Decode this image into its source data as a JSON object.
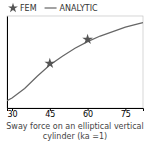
{
  "chart_data": {
    "type": "line",
    "caption": "Sway force on an elliptical vertical cylinder (ka =1)",
    "xlim": [
      28,
      82
    ],
    "ylim": [
      -0.05,
      1.6
    ],
    "xticks": [
      30,
      45,
      60,
      75
    ],
    "tick_labels": "x",
    "grid": false,
    "legend": "top-left",
    "series": [
      {
        "name": "FEM",
        "type": "scatter",
        "marker": "star",
        "color": "#555555",
        "x": [
          45,
          60
        ],
        "values": [
          0.75,
          1.18
        ]
      },
      {
        "name": "ANALYTIC",
        "type": "line",
        "line_style": "solid",
        "color": "#666666",
        "x": [
          28,
          30,
          35,
          40,
          45,
          50,
          55,
          60,
          65,
          70,
          75,
          80,
          82
        ],
        "values": [
          0.08,
          0.13,
          0.3,
          0.52,
          0.72,
          0.88,
          1.02,
          1.14,
          1.24,
          1.32,
          1.4,
          1.46,
          1.48
        ]
      }
    ]
  }
}
